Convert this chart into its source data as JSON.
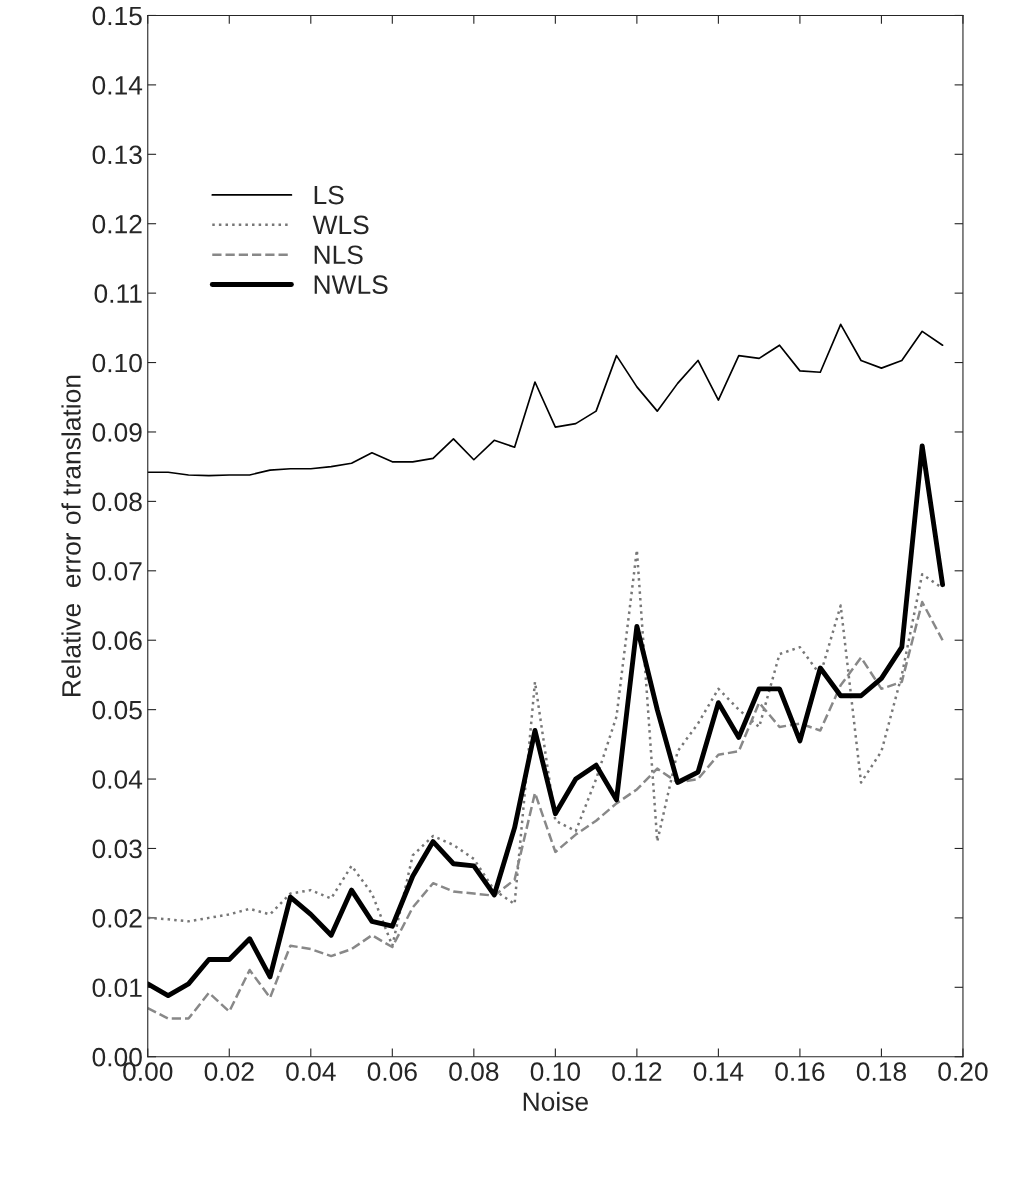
{
  "chart_data": {
    "type": "line",
    "xlabel": "Noise",
    "ylabel": "Relative  error of translation",
    "x": [
      0,
      0.005,
      0.01,
      0.015,
      0.02,
      0.025,
      0.03,
      0.035,
      0.04,
      0.045,
      0.05,
      0.055,
      0.06,
      0.065,
      0.07,
      0.075,
      0.08,
      0.085,
      0.09,
      0.095,
      0.1,
      0.105,
      0.11,
      0.115,
      0.12,
      0.125,
      0.13,
      0.135,
      0.14,
      0.145,
      0.15,
      0.155,
      0.16,
      0.165,
      0.17,
      0.175,
      0.18,
      0.185,
      0.19,
      0.195
    ],
    "series": [
      {
        "name": "LS",
        "color": "#000000",
        "line_style": "solid",
        "values": [
          0.0842,
          0.0842,
          0.0838,
          0.0837,
          0.0838,
          0.0838,
          0.0845,
          0.0847,
          0.0847,
          0.085,
          0.0855,
          0.087,
          0.0857,
          0.0857,
          0.0862,
          0.089,
          0.086,
          0.0888,
          0.0878,
          0.0972,
          0.0907,
          0.0912,
          0.093,
          0.101,
          0.0965,
          0.093,
          0.097,
          0.1003,
          0.0946,
          0.101,
          0.1006,
          0.1025,
          0.0988,
          0.0986,
          0.1055,
          0.1003,
          0.0992,
          0.1003,
          0.1045,
          0.1025
        ]
      },
      {
        "name": "WLS",
        "color": "#777777",
        "line_style": "dotted",
        "values": [
          0.02,
          0.0198,
          0.0195,
          0.02,
          0.0205,
          0.0213,
          0.0205,
          0.0235,
          0.024,
          0.0228,
          0.0275,
          0.0235,
          0.016,
          0.029,
          0.0318,
          0.0305,
          0.0285,
          0.024,
          0.022,
          0.054,
          0.034,
          0.0325,
          0.04,
          0.049,
          0.073,
          0.031,
          0.044,
          0.048,
          0.053,
          0.05,
          0.0475,
          0.058,
          0.059,
          0.055,
          0.065,
          0.0395,
          0.044,
          0.055,
          0.0695,
          0.0675
        ]
      },
      {
        "name": "NLS",
        "color": "#888888",
        "line_style": "dashed",
        "values": [
          0.007,
          0.0055,
          0.0055,
          0.0092,
          0.0065,
          0.0125,
          0.0085,
          0.016,
          0.0155,
          0.0145,
          0.0155,
          0.0175,
          0.0158,
          0.0215,
          0.025,
          0.0238,
          0.0235,
          0.0232,
          0.0255,
          0.038,
          0.0295,
          0.032,
          0.034,
          0.0365,
          0.0385,
          0.0415,
          0.0395,
          0.04,
          0.0435,
          0.044,
          0.051,
          0.0475,
          0.048,
          0.047,
          0.0535,
          0.0575,
          0.053,
          0.054,
          0.0655,
          0.06
        ]
      },
      {
        "name": "NWLS",
        "color": "#000000",
        "line_style": "solid",
        "values": [
          0.0105,
          0.0088,
          0.0105,
          0.014,
          0.014,
          0.017,
          0.0115,
          0.023,
          0.0205,
          0.0175,
          0.024,
          0.0195,
          0.0188,
          0.026,
          0.031,
          0.0278,
          0.0275,
          0.0233,
          0.033,
          0.047,
          0.035,
          0.04,
          0.042,
          0.037,
          0.062,
          0.05,
          0.0395,
          0.041,
          0.051,
          0.046,
          0.053,
          0.053,
          0.0455,
          0.056,
          0.052,
          0.052,
          0.0545,
          0.059,
          0.088,
          0.068
        ]
      }
    ],
    "xlim": [
      0,
      0.2
    ],
    "ylim": [
      0,
      0.15
    ],
    "xticks": [
      {
        "value": 0,
        "label": "0.00"
      },
      {
        "value": 0.02,
        "label": "0.02"
      },
      {
        "value": 0.04,
        "label": "0.04"
      },
      {
        "value": 0.06,
        "label": "0.06"
      },
      {
        "value": 0.08,
        "label": "0.08"
      },
      {
        "value": 0.1,
        "label": "0.10"
      },
      {
        "value": 0.12,
        "label": "0.12"
      },
      {
        "value": 0.14,
        "label": "0.14"
      },
      {
        "value": 0.16,
        "label": "0.16"
      },
      {
        "value": 0.18,
        "label": "0.18"
      },
      {
        "value": 0.2,
        "label": "0.20"
      }
    ],
    "yticks": [
      {
        "value": 0,
        "label": "0.00"
      },
      {
        "value": 0.01,
        "label": "0.01"
      },
      {
        "value": 0.02,
        "label": "0.02"
      },
      {
        "value": 0.03,
        "label": "0.03"
      },
      {
        "value": 0.04,
        "label": "0.04"
      },
      {
        "value": 0.05,
        "label": "0.05"
      },
      {
        "value": 0.06,
        "label": "0.06"
      },
      {
        "value": 0.07,
        "label": "0.07"
      },
      {
        "value": 0.08,
        "label": "0.08"
      },
      {
        "value": 0.09,
        "label": "0.09"
      },
      {
        "value": 0.1,
        "label": "0.10"
      },
      {
        "value": 0.11,
        "label": "0.11"
      },
      {
        "value": 0.12,
        "label": "0.12"
      },
      {
        "value": 0.13,
        "label": "0.13"
      },
      {
        "value": 0.14,
        "label": "0.14"
      },
      {
        "value": 0.15,
        "label": "0.15"
      }
    ],
    "grid": false,
    "legend": "top left",
    "marker": "none"
  }
}
